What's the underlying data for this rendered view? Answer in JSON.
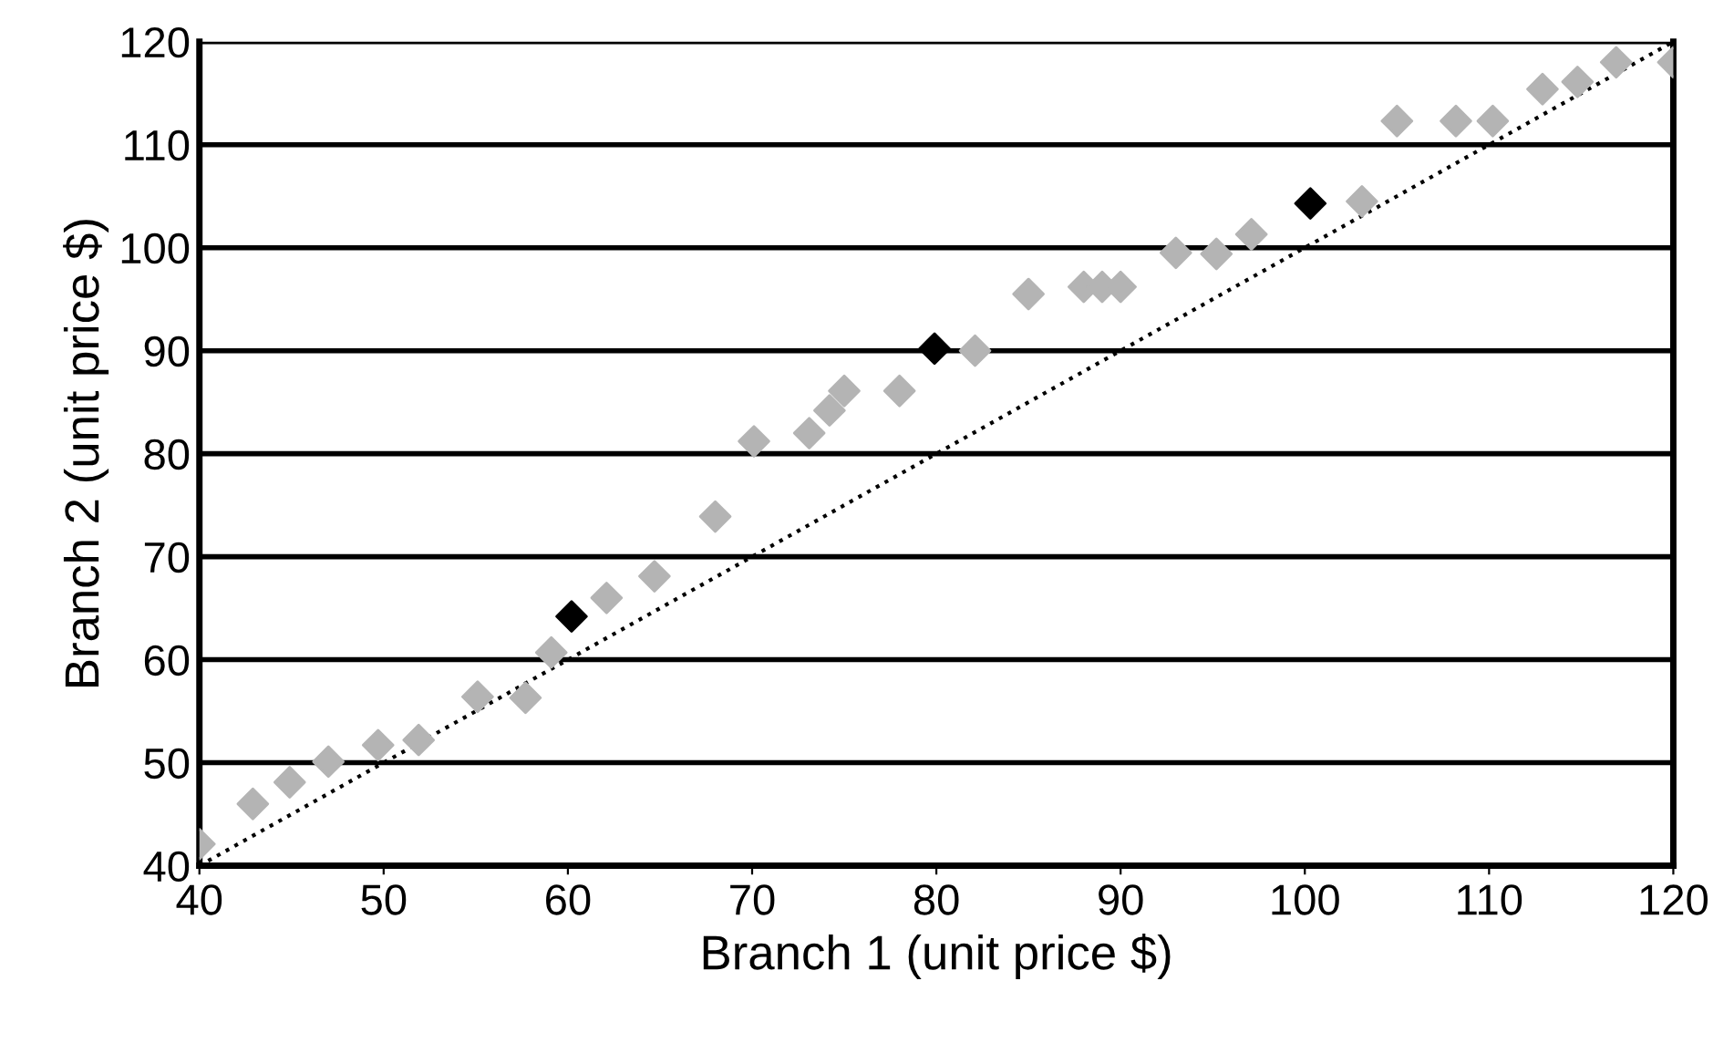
{
  "chart_data": {
    "type": "scatter",
    "xlabel": "Branch 1 (unit price $)",
    "ylabel": "Branch 2 (unit price $)",
    "xlim": [
      40,
      120
    ],
    "ylim": [
      40,
      120
    ],
    "xticks": [
      40,
      50,
      60,
      70,
      80,
      90,
      100,
      110,
      120
    ],
    "yticks": [
      40,
      50,
      60,
      70,
      80,
      90,
      100,
      110,
      120
    ],
    "grid": "y",
    "marker": "diamond",
    "legend": false,
    "series": [
      {
        "color": "#b4b4b4",
        "x": [
          40,
          42.9,
          44.9,
          47,
          49.7,
          51.9,
          55.1,
          57.7,
          59.1,
          62.1,
          64.7,
          68,
          70.1,
          73.1,
          74.2,
          75,
          78,
          82.1,
          85,
          88,
          89,
          90,
          93,
          95.2,
          97.1,
          103.1,
          105,
          108.2,
          110.2,
          112.9,
          114.8,
          116.9,
          120
        ],
        "values": [
          42.1,
          46,
          48.1,
          50.1,
          51.7,
          52.2,
          56.4,
          56.3,
          60.7,
          66,
          68.1,
          73.9,
          81.2,
          82,
          84.2,
          86.1,
          86.1,
          90,
          95.5,
          96.2,
          96.2,
          96.2,
          99.5,
          99.4,
          101.3,
          104.5,
          112.3,
          112.3,
          112.3,
          115.4,
          116.1,
          118,
          118
        ]
      },
      {
        "color": "#000000",
        "x": [
          60.2,
          79.9,
          100.3
        ],
        "values": [
          64.2,
          90.2,
          104.3
        ]
      },
      {
        "type": "line",
        "color": "#000000",
        "line_style": "dotted",
        "marker": "none",
        "x": [
          40,
          120
        ],
        "values": [
          40,
          120
        ]
      }
    ]
  }
}
